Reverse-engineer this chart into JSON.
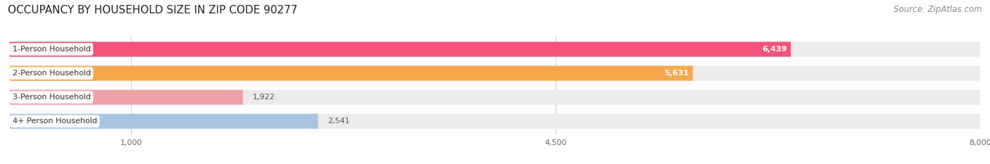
{
  "title": "OCCUPANCY BY HOUSEHOLD SIZE IN ZIP CODE 90277",
  "source": "Source: ZipAtlas.com",
  "categories": [
    "1-Person Household",
    "2-Person Household",
    "3-Person Household",
    "4+ Person Household"
  ],
  "values": [
    6439,
    5631,
    1922,
    2541
  ],
  "bar_colors": [
    "#F4527A",
    "#F5A84B",
    "#F0A0A8",
    "#A8C4E0"
  ],
  "bg_color": "#FFFFFF",
  "bar_bg_color": "#EBEBEB",
  "xlim": [
    0,
    8000
  ],
  "xticks": [
    1000,
    4500,
    8000
  ],
  "bar_height": 0.62,
  "title_fontsize": 11,
  "source_fontsize": 8.5,
  "label_fontsize": 8,
  "value_fontsize": 8
}
